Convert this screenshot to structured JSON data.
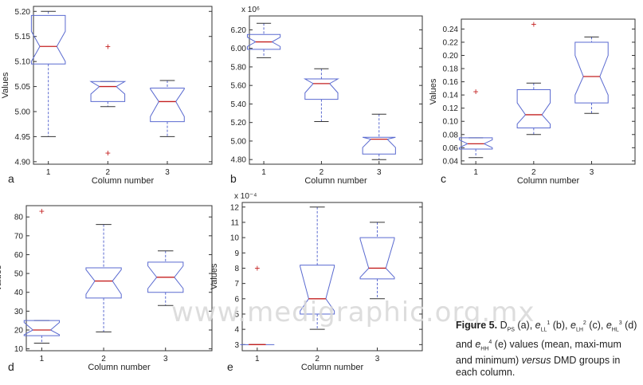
{
  "chart_data": [
    {
      "type": "box",
      "panel_label": "a",
      "ylabel": "Values",
      "xlabel": "Column number",
      "scale_label": "",
      "ylim": [
        4.895,
        5.21
      ],
      "yticks": [
        4.9,
        4.95,
        5.0,
        5.05,
        5.1,
        5.15,
        5.2
      ],
      "ytick_labels": [
        "4.90",
        "4.95",
        "5.00",
        "5.05",
        "5.10",
        "5.15",
        "5.20"
      ],
      "categories": [
        "1",
        "2",
        "3"
      ],
      "boxes": [
        {
          "whisker_low": 4.95,
          "q1": 5.095,
          "median": 5.13,
          "q3": 5.192,
          "whisker_high": 5.2,
          "notch_low": 5.1,
          "notch_high": 5.16,
          "outliers": []
        },
        {
          "whisker_low": 5.01,
          "q1": 5.02,
          "median": 5.05,
          "q3": 5.06,
          "whisker_high": 5.06,
          "notch_low": 5.035,
          "notch_high": 5.06,
          "outliers": [
            5.13,
            4.917
          ]
        },
        {
          "whisker_low": 4.95,
          "q1": 4.98,
          "median": 5.02,
          "q3": 5.047,
          "whisker_high": 5.062,
          "notch_low": 4.99,
          "notch_high": 5.045,
          "outliers": []
        }
      ]
    },
    {
      "type": "box",
      "panel_label": "b",
      "ylabel": "",
      "xlabel": "Column number",
      "scale_label": "x 10⁶",
      "ylim": [
        4.75,
        6.35
      ],
      "yticks": [
        4.8,
        5.0,
        5.2,
        5.4,
        5.6,
        5.8,
        6.0,
        6.2
      ],
      "ytick_labels": [
        "4.80",
        "5.00",
        "5.20",
        "5.40",
        "5.60",
        "5.80",
        "6.00",
        "6.20"
      ],
      "categories": [
        "1",
        "2",
        "3"
      ],
      "boxes": [
        {
          "whisker_low": 5.9,
          "q1": 5.99,
          "median": 6.07,
          "q3": 6.15,
          "whisker_high": 6.27,
          "notch_low": 6.02,
          "notch_high": 6.12,
          "outliers": []
        },
        {
          "whisker_low": 5.21,
          "q1": 5.45,
          "median": 5.62,
          "q3": 5.67,
          "whisker_high": 5.78,
          "notch_low": 5.52,
          "notch_high": 5.67,
          "outliers": []
        },
        {
          "whisker_low": 4.8,
          "q1": 4.86,
          "median": 5.02,
          "q3": 5.04,
          "whisker_high": 5.29,
          "notch_low": 4.93,
          "notch_high": 5.04,
          "outliers": []
        }
      ]
    },
    {
      "type": "box",
      "panel_label": "c",
      "ylabel": "Values",
      "xlabel": "Column number",
      "scale_label": "",
      "ylim": [
        0.035,
        0.255
      ],
      "yticks": [
        0.04,
        0.06,
        0.08,
        0.1,
        0.12,
        0.14,
        0.16,
        0.18,
        0.2,
        0.22,
        0.24
      ],
      "ytick_labels": [
        "0.04",
        "0.06",
        "0.08",
        "0.10",
        "0.12",
        "0.14",
        "0.16",
        "0.18",
        "0.20",
        "0.22",
        "0.24"
      ],
      "categories": [
        "1",
        "2",
        "3"
      ],
      "boxes": [
        {
          "whisker_low": 0.045,
          "q1": 0.058,
          "median": 0.066,
          "q3": 0.075,
          "whisker_high": 0.075,
          "notch_low": 0.06,
          "notch_high": 0.072,
          "outliers": [
            0.145
          ]
        },
        {
          "whisker_low": 0.08,
          "q1": 0.09,
          "median": 0.11,
          "q3": 0.148,
          "whisker_high": 0.158,
          "notch_low": 0.096,
          "notch_high": 0.128,
          "outliers": [
            0.247
          ]
        },
        {
          "whisker_low": 0.112,
          "q1": 0.128,
          "median": 0.168,
          "q3": 0.22,
          "whisker_high": 0.228,
          "notch_low": 0.14,
          "notch_high": 0.2,
          "outliers": []
        }
      ]
    },
    {
      "type": "box",
      "panel_label": "d",
      "ylabel": "Values",
      "xlabel": "Column number",
      "scale_label": "",
      "ylim": [
        9,
        86
      ],
      "yticks": [
        10,
        20,
        30,
        40,
        50,
        60,
        70,
        80
      ],
      "ytick_labels": [
        "10",
        "20",
        "30",
        "40",
        "50",
        "60",
        "70",
        "80"
      ],
      "categories": [
        "1",
        "2",
        "3"
      ],
      "boxes": [
        {
          "whisker_low": 13,
          "q1": 17,
          "median": 20,
          "q3": 25,
          "whisker_high": 25,
          "notch_low": 17.5,
          "notch_high": 24,
          "outliers": [
            83
          ]
        },
        {
          "whisker_low": 19,
          "q1": 37,
          "median": 46,
          "q3": 53,
          "whisker_high": 76,
          "notch_low": 39,
          "notch_high": 52,
          "outliers": []
        },
        {
          "whisker_low": 33,
          "q1": 40,
          "median": 48,
          "q3": 56,
          "whisker_high": 62,
          "notch_low": 42,
          "notch_high": 54,
          "outliers": []
        }
      ]
    },
    {
      "type": "box",
      "panel_label": "e",
      "ylabel": "Values",
      "xlabel": "Column number",
      "scale_label": "x 10⁻⁴",
      "ylim": [
        2.6,
        12.3
      ],
      "yticks": [
        3,
        4,
        5,
        6,
        7,
        8,
        9,
        10,
        11,
        12
      ],
      "ytick_labels": [
        "3",
        "4",
        "5",
        "6",
        "7",
        "8",
        "9",
        "10",
        "11",
        "12"
      ],
      "categories": [
        "1",
        "2",
        "3"
      ],
      "boxes": [
        {
          "whisker_low": 3,
          "q1": 3,
          "median": 3,
          "q3": 3,
          "whisker_high": 3,
          "notch_low": 3,
          "notch_high": 3,
          "outliers": [
            8
          ]
        },
        {
          "whisker_low": 4,
          "q1": 5,
          "median": 6,
          "q3": 8.2,
          "whisker_high": 12,
          "notch_low": 5.2,
          "notch_high": 8.1,
          "outliers": []
        },
        {
          "whisker_low": 6,
          "q1": 7.3,
          "median": 8,
          "q3": 10,
          "whisker_high": 11,
          "notch_low": 7.4,
          "notch_high": 9.9,
          "outliers": []
        }
      ]
    }
  ],
  "caption": {
    "label": "Figure 5.",
    "t1": " D",
    "s1": "PS",
    "t2": " (a), ",
    "v2": "e",
    "s2": "LL",
    "p2": "1",
    "t3": " (b), ",
    "v3": "e",
    "s3": "LH",
    "p3": "2",
    "t4": " (c), ",
    "v4": "e",
    "s4": "HL",
    "p4": "3",
    "t5": " (d) and ",
    "v5": "e",
    "s5": "HH",
    "p5": "4",
    "t6": " (e) values (mean, maxi-mum and minimum) ",
    "em": "versus",
    "t7": " DMD groups in each column."
  },
  "watermark": "www.medigraphic.org.mx",
  "colors": {
    "box": "#5a6ad0",
    "median": "#c42020",
    "outlier": "#c42020",
    "whisker": "#5a6ad0",
    "axis": "#333333"
  }
}
